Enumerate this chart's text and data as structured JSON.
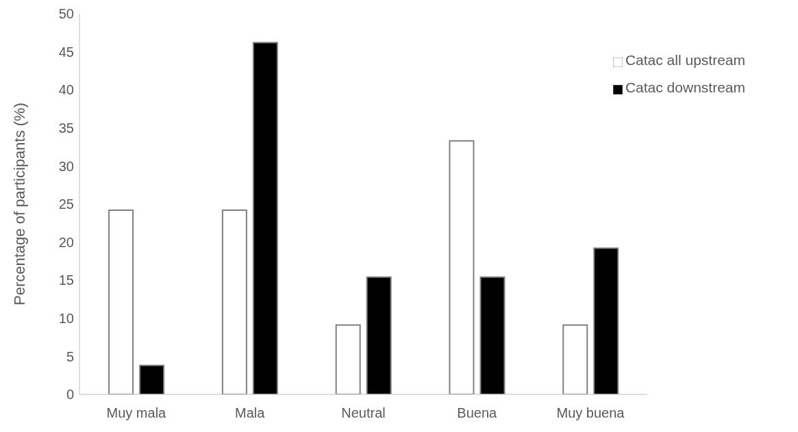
{
  "chart_data": {
    "type": "bar",
    "ylabel": "Percentage of participants (%)",
    "categories": [
      "Muy mala",
      "Mala",
      "Neutral",
      "Buena",
      "Muy buena"
    ],
    "series": [
      {
        "name": "Catac all upstream",
        "color": "#ffffff",
        "values": [
          24.2,
          24.2,
          9.1,
          33.3,
          9.1
        ]
      },
      {
        "name": "Catac downstream",
        "color": "#000000",
        "values": [
          3.8,
          46.2,
          15.4,
          15.4,
          19.2
        ]
      }
    ],
    "ylim": [
      0,
      50
    ],
    "yticks": [
      0,
      5,
      10,
      15,
      20,
      25,
      30,
      35,
      40,
      45,
      50
    ],
    "grid": false,
    "legend": "top right"
  }
}
